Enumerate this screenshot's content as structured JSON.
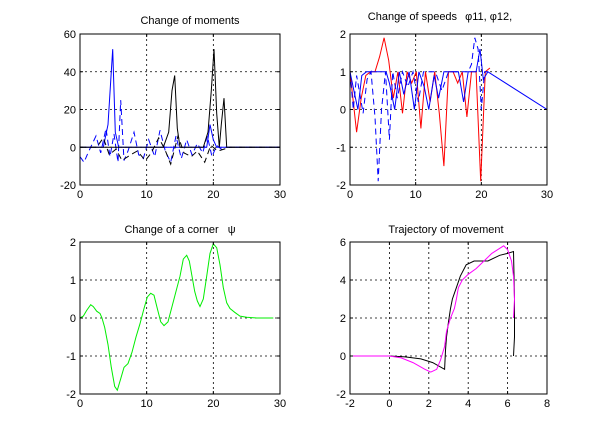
{
  "chart_data": [
    {
      "type": "line",
      "title": "Change of moments",
      "xlim": [
        0,
        30
      ],
      "ylim": [
        -20,
        60
      ],
      "xticks": [
        0,
        10,
        20,
        30
      ],
      "yticks": [
        -20,
        0,
        20,
        40,
        60
      ],
      "grid": true,
      "series": [
        {
          "color": "#0000ff",
          "style": "solid",
          "x": [
            0,
            3.5,
            4.2,
            4.6,
            4.9,
            5.3,
            5.8,
            6.3,
            7.0,
            8.5,
            10,
            11,
            12,
            14,
            16,
            18,
            19,
            19.5,
            20,
            20.5,
            21,
            22,
            25,
            30
          ],
          "y": [
            0,
            0,
            12,
            35,
            52,
            8,
            0,
            0,
            0,
            0,
            0,
            0,
            0,
            0,
            0,
            0,
            0,
            12,
            4,
            0,
            0,
            0,
            0,
            0
          ]
        },
        {
          "color": "#0000ff",
          "style": "dashed",
          "x": [
            0,
            0.6,
            1.2,
            2.4,
            3.1,
            3.9,
            4.5,
            5.1,
            5.7,
            6.1,
            6.6,
            7.2,
            8.1,
            8.8,
            9.5,
            10.3,
            11.2,
            12.0,
            12.8,
            13.6,
            14.4,
            15.2,
            16.0,
            16.8,
            17.6,
            18.4,
            19.1,
            19.8,
            20.5,
            21.2,
            22,
            30
          ],
          "y": [
            -5,
            -8,
            -3,
            6,
            -3,
            10,
            -5,
            7,
            -8,
            25,
            -7,
            -2,
            8,
            -4,
            -6,
            4,
            -5,
            9,
            -2,
            -8,
            6,
            -6,
            4,
            -4,
            2,
            -3,
            6,
            -5,
            1,
            -1,
            0,
            0
          ]
        },
        {
          "color": "#000000",
          "style": "solid",
          "x": [
            0,
            12.5,
            13.3,
            13.8,
            14.2,
            14.6,
            15,
            17,
            18.5,
            19.2,
            19.7,
            20.1,
            20.5,
            20.9,
            21.2,
            21.6,
            22,
            30
          ],
          "y": [
            0,
            0,
            8,
            30,
            38,
            10,
            0,
            0,
            0,
            8,
            30,
            52,
            18,
            0,
            12,
            26,
            0,
            0
          ]
        },
        {
          "color": "#000000",
          "style": "dashed",
          "x": [
            0,
            2.5,
            3.5,
            4.4,
            5.4,
            6.3,
            7.6,
            8.6,
            9.8,
            10.7,
            11.8,
            12.7,
            13.6,
            14.7,
            15.6,
            16.7,
            17.6,
            18.7,
            19.6,
            20.7,
            21.6,
            22.5,
            30
          ],
          "y": [
            0,
            0,
            5,
            -4,
            -1,
            -7,
            -4,
            -2,
            -7,
            -3,
            5,
            -1,
            -9,
            6,
            -3,
            -5,
            -2,
            -8,
            1,
            -2,
            -1,
            0,
            0
          ]
        }
      ]
    },
    {
      "type": "line",
      "title": "Change of speeds",
      "title_symbols": "φ11, φ12,",
      "xlim": [
        0,
        30
      ],
      "ylim": [
        -2,
        2
      ],
      "xticks": [
        0,
        10,
        20,
        30
      ],
      "yticks": [
        -2,
        -1,
        0,
        1,
        2
      ],
      "grid": true,
      "series": [
        {
          "color": "#ff0000",
          "style": "solid",
          "x": [
            0,
            0.5,
            1.0,
            1.7,
            2.4,
            3.1,
            3.8,
            4.5,
            5.2,
            5.9,
            6.6,
            7.3,
            8.0,
            8.7,
            9.4,
            10.1,
            10.8,
            11.5,
            12.2,
            12.9,
            13.6,
            14.3,
            15.0,
            15.7,
            16.4,
            17.1,
            17.8,
            18.5,
            19.2,
            19.9,
            20.6,
            21.3
          ],
          "y": [
            1,
            0.2,
            -0.6,
            0.3,
            0.9,
            1.0,
            1.0,
            1.4,
            1.9,
            1.3,
            0.3,
            1.0,
            -0.1,
            1.0,
            0.7,
            1.0,
            -0.5,
            1.0,
            0.2,
            1.0,
            -0.1,
            -1.5,
            1.0,
            1.0,
            0.7,
            1.0,
            -0.2,
            1.0,
            1.0,
            -1.9,
            1.0,
            1.1
          ]
        },
        {
          "color": "#0000ff",
          "style": "solid",
          "x": [
            0,
            0.6,
            1.2,
            1.8,
            2.5,
            3.0,
            4.5,
            5.5,
            6.0,
            6.8,
            7.5,
            8.2,
            9.0,
            9.8,
            10.5,
            11.3,
            12.0,
            12.8,
            13.5,
            14.3,
            15.0,
            15.8,
            16.5,
            17.3,
            18.0,
            18.6,
            19.2,
            19.8,
            20.3,
            21.0,
            30.0
          ],
          "y": [
            1,
            0.5,
            0.0,
            0.9,
            1.0,
            1.0,
            1.0,
            1.0,
            0.7,
            0.0,
            1.0,
            0.4,
            1.0,
            0.0,
            1.0,
            0.6,
            0.0,
            0.9,
            0.3,
            1.0,
            1.0,
            1.0,
            1.0,
            0.2,
            1.0,
            1.0,
            1.0,
            1.6,
            0.8,
            1.0,
            0.0
          ]
        },
        {
          "color": "#0000ff",
          "style": "dashed",
          "x": [
            0,
            0.5,
            1.0,
            1.5,
            2.0,
            2.6,
            3.2,
            3.8,
            4.3,
            4.8,
            5.4,
            6.0,
            6.5,
            7.2,
            8.0,
            8.8,
            9.6,
            10.4,
            11.2,
            12.0,
            13.0,
            14.0,
            15.0,
            16.0,
            17.0,
            18.0,
            18.5,
            19.0,
            19.5,
            20.0,
            20.5,
            21.0
          ],
          "y": [
            1,
            0,
            0.9,
            0.4,
            -0.1,
            0.8,
            1.0,
            -0.2,
            -1.9,
            0.0,
            1.0,
            -0.8,
            1.0,
            0.3,
            1.0,
            0.6,
            1.0,
            0.2,
            1.0,
            1.0,
            1.0,
            0.5,
            1.0,
            1.0,
            1.0,
            1.0,
            1.2,
            1.9,
            1.6,
            0.0,
            1.0,
            1.0
          ]
        }
      ]
    },
    {
      "type": "line",
      "title": "Change of a corner",
      "title_symbols": "ψ",
      "xlim": [
        0,
        30
      ],
      "ylim": [
        -2,
        2
      ],
      "xticks": [
        0,
        10,
        20,
        30
      ],
      "yticks": [
        -2,
        -1,
        0,
        1,
        2
      ],
      "grid": true,
      "series": [
        {
          "color": "#00ee00",
          "style": "solid",
          "x": [
            0,
            0.5,
            1.0,
            1.6,
            2.0,
            2.5,
            3.0,
            3.3,
            3.7,
            4.2,
            4.7,
            5.2,
            5.6,
            6.1,
            6.6,
            7.2,
            7.8,
            8.4,
            9.0,
            9.6,
            10.1,
            10.6,
            11.1,
            11.6,
            12.1,
            12.6,
            13.2,
            13.8,
            14.4,
            15.0,
            15.5,
            16.0,
            16.4,
            16.8,
            17.2,
            17.6,
            18.0,
            18.5,
            19.0,
            19.5,
            20.0,
            20.5,
            21.0,
            21.5,
            22.0,
            22.5,
            23.2,
            24.0,
            25.0,
            26.5,
            28.0,
            29.0
          ],
          "y": [
            0,
            0.05,
            0.2,
            0.35,
            0.3,
            0.18,
            0.12,
            0.0,
            -0.25,
            -0.7,
            -1.3,
            -1.8,
            -1.9,
            -1.6,
            -1.3,
            -1.2,
            -0.9,
            -0.5,
            -0.15,
            0.25,
            0.55,
            0.65,
            0.6,
            0.25,
            -0.1,
            -0.2,
            -0.1,
            0.3,
            0.7,
            1.1,
            1.55,
            1.65,
            1.5,
            1.1,
            0.7,
            0.45,
            0.3,
            0.5,
            1.1,
            1.7,
            1.95,
            1.85,
            1.4,
            0.8,
            0.4,
            0.25,
            0.15,
            0.05,
            0.02,
            0.0,
            0.0,
            0.0
          ]
        }
      ]
    },
    {
      "type": "line",
      "title": "Trajectory of movement",
      "xlim": [
        -2,
        8
      ],
      "ylim": [
        -2,
        6
      ],
      "xticks": [
        -2,
        0,
        2,
        4,
        6,
        8
      ],
      "yticks": [
        -2,
        0,
        2,
        4,
        6
      ],
      "grid": true,
      "series": [
        {
          "color": "#000000",
          "style": "solid",
          "x": [
            -2,
            -1,
            0,
            0.8,
            1.6,
            2.2,
            2.8,
            2.85,
            2.9,
            3.0,
            3.1,
            3.2,
            3.4,
            3.6,
            3.9,
            4.3,
            5.0,
            5.6,
            6.0,
            6.3,
            6.35,
            6.35,
            6.3
          ],
          "y": [
            0,
            0,
            0,
            -0.05,
            -0.15,
            -0.35,
            -0.7,
            0.3,
            1.0,
            1.8,
            2.5,
            3.0,
            3.6,
            4.2,
            4.8,
            5.0,
            5.0,
            5.3,
            5.4,
            5.5,
            3.0,
            1.0,
            0.0
          ]
        },
        {
          "color": "#ff00ff",
          "style": "solid",
          "x": [
            -2,
            -1,
            0,
            0.6,
            1.2,
            1.8,
            2.1,
            2.4,
            2.6,
            2.8,
            2.9,
            3.1,
            3.3,
            3.4,
            3.5,
            3.7,
            4.0,
            4.4,
            4.8,
            5.2,
            5.5,
            5.8,
            6.0,
            6.2,
            6.3,
            6.35,
            6.3
          ],
          "y": [
            0,
            0,
            0,
            -0.1,
            -0.35,
            -0.7,
            -0.85,
            -0.7,
            -0.2,
            0.5,
            1.3,
            2.0,
            2.5,
            3.0,
            3.6,
            4.0,
            4.3,
            4.6,
            5.0,
            5.4,
            5.6,
            5.8,
            5.6,
            5.0,
            4.2,
            3.0,
            2.0
          ]
        }
      ]
    }
  ]
}
